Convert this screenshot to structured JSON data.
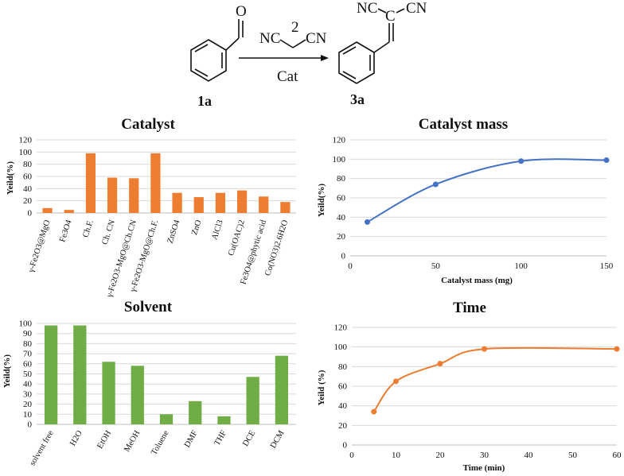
{
  "scheme": {
    "reagent_number": "2",
    "reagent_left": "NC",
    "reagent_right": "CN",
    "catalyst": "Cat",
    "reactant_label": "1a",
    "product_label": "3a",
    "product_left_cn": "NC",
    "product_right_cn": "CN",
    "carbonyl_o": "O",
    "central_c": "C"
  },
  "colors": {
    "orange": "#ED7D31",
    "green": "#70AD47",
    "blue": "#4472C4"
  },
  "chart_data": [
    {
      "id": "catalyst",
      "type": "bar",
      "title": "Catalyst",
      "ylabel": "Yeild(%)",
      "xlabel": "",
      "ylim": [
        0,
        120
      ],
      "yticks": [
        0,
        20,
        40,
        60,
        80,
        100,
        120
      ],
      "categories": [
        "γ-Fe2O3@MgO",
        "Fe3O4",
        "Ch.F.",
        "Ch. CN",
        "γ-Fe2O3-MgO@Ch.CN",
        "γ-Fe2O3-MgO@Ch.F.",
        "ZnSO4",
        "ZnO",
        "AlCl3",
        "Cu(OAC)2",
        "Fe3O4@phytic acid",
        "Co(NO3)2.6H2O"
      ],
      "values": [
        8,
        5,
        98,
        58,
        57,
        98,
        33,
        26,
        33,
        37,
        27,
        18
      ],
      "grid": true
    },
    {
      "id": "catalyst_mass",
      "type": "line",
      "title": "Catalyst mass",
      "xlabel": "Catalyst mass (mg)",
      "ylabel": "Yeild(%)",
      "x": [
        10,
        50,
        100,
        150
      ],
      "y": [
        35,
        74,
        98,
        99
      ],
      "xlim": [
        0,
        150
      ],
      "ylim": [
        0,
        120
      ],
      "xticks": [
        0,
        50,
        100,
        150
      ],
      "yticks": [
        0,
        20,
        40,
        60,
        80,
        100,
        120
      ],
      "grid": true
    },
    {
      "id": "solvent",
      "type": "bar",
      "title": "Solvent",
      "ylabel": "Yeild(%)",
      "xlabel": "",
      "ylim": [
        0,
        100
      ],
      "yticks": [
        0,
        10,
        20,
        30,
        40,
        50,
        60,
        70,
        80,
        90,
        100
      ],
      "categories": [
        "solvent free",
        "H2O",
        "EtOH",
        "MeOH",
        "Toluene",
        "DMF",
        "THF",
        "DCE",
        "DCM"
      ],
      "values": [
        98,
        98,
        62,
        58,
        10,
        23,
        8,
        47,
        68
      ],
      "grid": true
    },
    {
      "id": "time",
      "type": "line",
      "title": "Time",
      "xlabel": "Time (min)",
      "ylabel": "Yeild (%)",
      "x": [
        5,
        10,
        20,
        30,
        60
      ],
      "y": [
        34,
        65,
        83,
        98,
        98
      ],
      "xlim": [
        0,
        60
      ],
      "ylim": [
        0,
        120
      ],
      "xticks": [
        0,
        10,
        20,
        30,
        40,
        50,
        60
      ],
      "yticks": [
        0,
        20,
        40,
        60,
        80,
        100,
        120
      ],
      "grid": true
    }
  ]
}
